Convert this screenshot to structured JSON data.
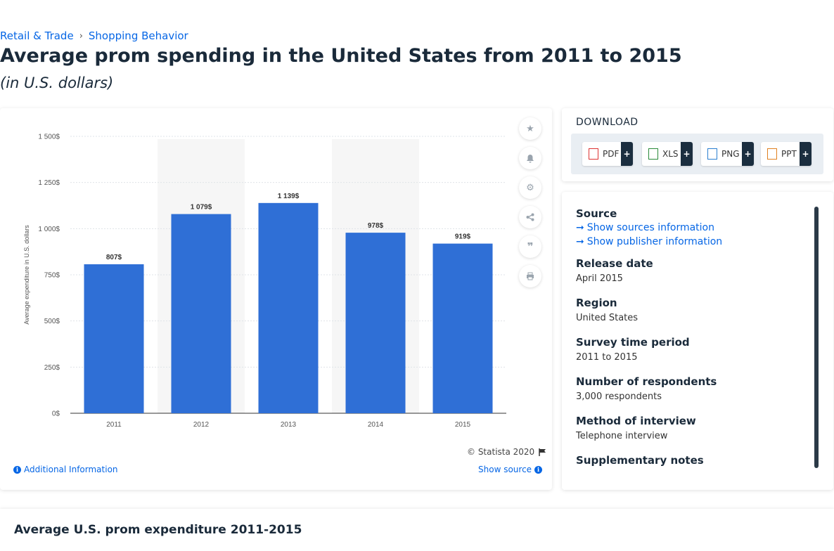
{
  "breadcrumb": {
    "item1": "Retail & Trade",
    "separator": "›",
    "item2": "Shopping Behavior"
  },
  "page": {
    "title": "Average prom spending in the United States from 2011 to 2015",
    "subtitle": "(in U.S. dollars)"
  },
  "chart_data": {
    "type": "bar",
    "categories": [
      "2011",
      "2012",
      "2013",
      "2014",
      "2015"
    ],
    "values": [
      807,
      1079,
      1139,
      978,
      919
    ],
    "value_labels": [
      "807$",
      "1 079$",
      "1 139$",
      "978$",
      "919$"
    ],
    "ylabel": "Average expenditure in U.S. dollars",
    "ylim": [
      0,
      1500
    ],
    "y_ticks": [
      0,
      250,
      500,
      750,
      1000,
      1250,
      1500
    ],
    "y_tick_labels": [
      "0$",
      "250$",
      "500$",
      "750$",
      "1 000$",
      "1 250$",
      "1 500$"
    ],
    "bar_color": "#2f6fd6",
    "grid": true
  },
  "chart_card": {
    "copyright": "© Statista 2020",
    "additional_info": "Additional Information",
    "show_source": "Show source"
  },
  "tools": [
    "star-icon",
    "bell-icon",
    "gear-icon",
    "share-icon",
    "quote-icon",
    "print-icon"
  ],
  "download": {
    "title": "DOWNLOAD",
    "buttons": [
      {
        "label": "PDF",
        "plus": "+",
        "color": "#d33"
      },
      {
        "label": "XLS",
        "plus": "+",
        "color": "#2a8a3a"
      },
      {
        "label": "PNG",
        "plus": "+",
        "color": "#2a7fd0"
      },
      {
        "label": "PPT",
        "plus": "+",
        "color": "#e08020"
      }
    ]
  },
  "meta": {
    "source_heading": "Source",
    "show_sources": "Show sources information",
    "show_publisher": "Show publisher information",
    "release_heading": "Release date",
    "release_value": "April 2015",
    "region_heading": "Region",
    "region_value": "United States",
    "survey_heading": "Survey time period",
    "survey_value": "2011 to 2015",
    "respondents_heading": "Number of respondents",
    "respondents_value": "3,000 respondents",
    "method_heading": "Method of interview",
    "method_value": "Telephone interview",
    "supp_heading": "Supplementary notes"
  },
  "bottom": {
    "title": "Average U.S. prom expenditure 2011-2015"
  }
}
